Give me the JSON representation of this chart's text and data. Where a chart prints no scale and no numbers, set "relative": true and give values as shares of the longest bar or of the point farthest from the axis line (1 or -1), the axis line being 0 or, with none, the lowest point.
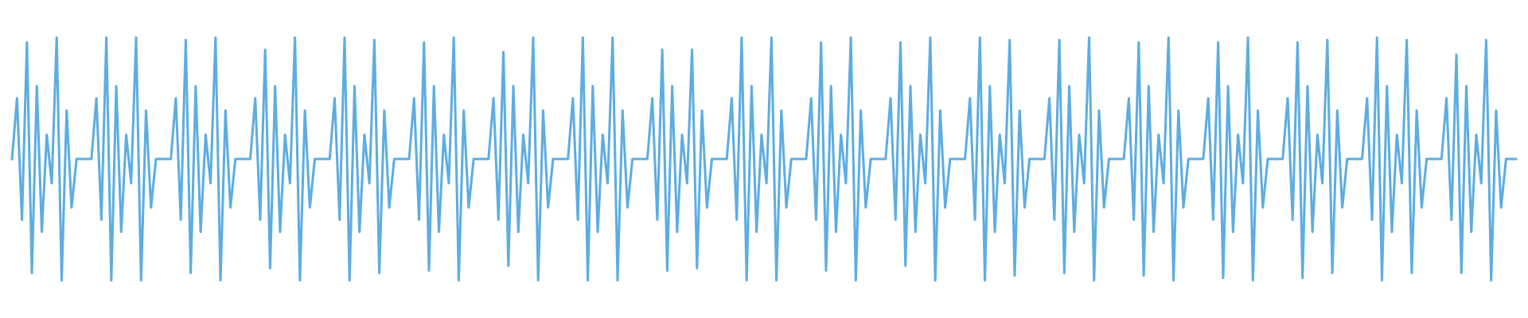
{
  "chart_data": {
    "type": "line",
    "relative": true,
    "line_style": "solid",
    "marker": "none",
    "categories": [
      null,
      null,
      null,
      null,
      null,
      null,
      null,
      null,
      null,
      null,
      null,
      null,
      null,
      null,
      null,
      null,
      null,
      null,
      null,
      null,
      null,
      null,
      null,
      null,
      null,
      null,
      null,
      null,
      null,
      null,
      null,
      null,
      null,
      null,
      null,
      null,
      null,
      null,
      null,
      null,
      null,
      null,
      null,
      null,
      null,
      null,
      null,
      null,
      null,
      null,
      null,
      null,
      null,
      null,
      null,
      null,
      null,
      null,
      null,
      null,
      null,
      null,
      null,
      null,
      null,
      null,
      null,
      null,
      null,
      null,
      null,
      null,
      null,
      null,
      null,
      null,
      null,
      null,
      null,
      null,
      null,
      null,
      null,
      null,
      null,
      null,
      null,
      null,
      null,
      null,
      null,
      null,
      null,
      null,
      null,
      null,
      null,
      null,
      null,
      null,
      null,
      null,
      null,
      null,
      null,
      null,
      null,
      null,
      null,
      null,
      null,
      null,
      null,
      null,
      null,
      null,
      null,
      null,
      null,
      null,
      null,
      null,
      null,
      null,
      null,
      null,
      null,
      null,
      null,
      null,
      null,
      null,
      null,
      null,
      null,
      null,
      null,
      null,
      null,
      null,
      null,
      null,
      null,
      null,
      null,
      null,
      null,
      null,
      null,
      null,
      null,
      null,
      null,
      null,
      null,
      null,
      null,
      null,
      null,
      null,
      null,
      null,
      null,
      null,
      null,
      null,
      null,
      null,
      null,
      null,
      null,
      null,
      null,
      null,
      null,
      null,
      null,
      null,
      null,
      null,
      null,
      null,
      null,
      null,
      null,
      null,
      null,
      null,
      null,
      null,
      null,
      null,
      null,
      null,
      null,
      null,
      null,
      null,
      null,
      null,
      null,
      null,
      null,
      null,
      null,
      null,
      null,
      null,
      null,
      null,
      null,
      null,
      null,
      null,
      null,
      null,
      null,
      null,
      null,
      null,
      null,
      null,
      null,
      null,
      null,
      null,
      null,
      null,
      null,
      null,
      null,
      null,
      null,
      null,
      null,
      null,
      null,
      null,
      null,
      null,
      null,
      null,
      null,
      null,
      null,
      null,
      null,
      null,
      null,
      null,
      null,
      null,
      null,
      null,
      null,
      null,
      null,
      null,
      null,
      null,
      null,
      null,
      null,
      null,
      null,
      null,
      null,
      null,
      null,
      null,
      null,
      null,
      null,
      null,
      null,
      null,
      null,
      null,
      null,
      null,
      null,
      null,
      null,
      null,
      null,
      null,
      null,
      null,
      null,
      null,
      null,
      null,
      null,
      null,
      null,
      null,
      null,
      null,
      null,
      null,
      null,
      null,
      null,
      null
    ],
    "series": [
      {
        "color": "#5dade2",
        "values": [
          0.5,
          0.75,
          0.25,
          0.98,
          0.03,
          0.8,
          0.2,
          0.6,
          0.4,
          1.0,
          0.0,
          0.7,
          0.3,
          0.5,
          0.5,
          0.5,
          0.5,
          0.75,
          0.25,
          1.0,
          0.0,
          0.8,
          0.2,
          0.6,
          0.4,
          1.0,
          0.0,
          0.7,
          0.3,
          0.5,
          0.5,
          0.5,
          0.5,
          0.75,
          0.25,
          0.99,
          0.03,
          0.8,
          0.2,
          0.6,
          0.4,
          1.0,
          0.0,
          0.7,
          0.3,
          0.5,
          0.5,
          0.5,
          0.5,
          0.75,
          0.25,
          0.95,
          0.05,
          0.8,
          0.2,
          0.6,
          0.4,
          1.0,
          0.0,
          0.7,
          0.3,
          0.5,
          0.5,
          0.5,
          0.5,
          0.75,
          0.25,
          1.0,
          0.0,
          0.8,
          0.2,
          0.6,
          0.4,
          0.99,
          0.03,
          0.7,
          0.3,
          0.5,
          0.5,
          0.5,
          0.5,
          0.75,
          0.25,
          0.98,
          0.04,
          0.8,
          0.2,
          0.6,
          0.4,
          1.0,
          0.0,
          0.7,
          0.3,
          0.5,
          0.5,
          0.5,
          0.5,
          0.75,
          0.25,
          0.94,
          0.06,
          0.8,
          0.2,
          0.6,
          0.4,
          1.0,
          0.0,
          0.7,
          0.3,
          0.5,
          0.5,
          0.5,
          0.5,
          0.75,
          0.25,
          1.0,
          0.0,
          0.8,
          0.2,
          0.6,
          0.4,
          1.0,
          0.0,
          0.7,
          0.3,
          0.5,
          0.5,
          0.5,
          0.5,
          0.75,
          0.25,
          0.95,
          0.04,
          0.8,
          0.2,
          0.6,
          0.4,
          0.95,
          0.05,
          0.7,
          0.3,
          0.5,
          0.5,
          0.5,
          0.5,
          0.75,
          0.25,
          1.0,
          0.0,
          0.8,
          0.2,
          0.6,
          0.4,
          1.0,
          0.0,
          0.7,
          0.3,
          0.5,
          0.5,
          0.5,
          0.5,
          0.75,
          0.25,
          0.98,
          0.04,
          0.8,
          0.2,
          0.6,
          0.4,
          1.0,
          0.0,
          0.7,
          0.3,
          0.5,
          0.5,
          0.5,
          0.5,
          0.75,
          0.25,
          0.98,
          0.06,
          0.8,
          0.2,
          0.6,
          0.4,
          1.0,
          0.0,
          0.7,
          0.3,
          0.5,
          0.5,
          0.5,
          0.5,
          0.75,
          0.25,
          1.0,
          0.0,
          0.8,
          0.2,
          0.6,
          0.4,
          0.99,
          0.02,
          0.7,
          0.3,
          0.5,
          0.5,
          0.5,
          0.5,
          0.75,
          0.25,
          0.99,
          0.03,
          0.8,
          0.2,
          0.6,
          0.4,
          1.0,
          0.0,
          0.7,
          0.3,
          0.5,
          0.5,
          0.5,
          0.5,
          0.75,
          0.25,
          0.98,
          0.02,
          0.8,
          0.2,
          0.6,
          0.4,
          1.0,
          0.0,
          0.7,
          0.3,
          0.5,
          0.5,
          0.5,
          0.5,
          0.75,
          0.25,
          0.98,
          0.01,
          0.8,
          0.2,
          0.6,
          0.4,
          1.0,
          0.0,
          0.7,
          0.3,
          0.5,
          0.5,
          0.5,
          0.5,
          0.75,
          0.25,
          0.98,
          0.01,
          0.8,
          0.2,
          0.6,
          0.4,
          0.99,
          0.03,
          0.7,
          0.3,
          0.5,
          0.5,
          0.5,
          0.5,
          0.75,
          0.25,
          1.0,
          0.0,
          0.8,
          0.2,
          0.6,
          0.4,
          0.99,
          0.03,
          0.7,
          0.3,
          0.5,
          0.5,
          0.5,
          0.5,
          0.75,
          0.25,
          0.93,
          0.03,
          0.8,
          0.2,
          0.6,
          0.4,
          0.99,
          0.0,
          0.7,
          0.3,
          0.5,
          0.5,
          0.5
        ]
      }
    ]
  }
}
